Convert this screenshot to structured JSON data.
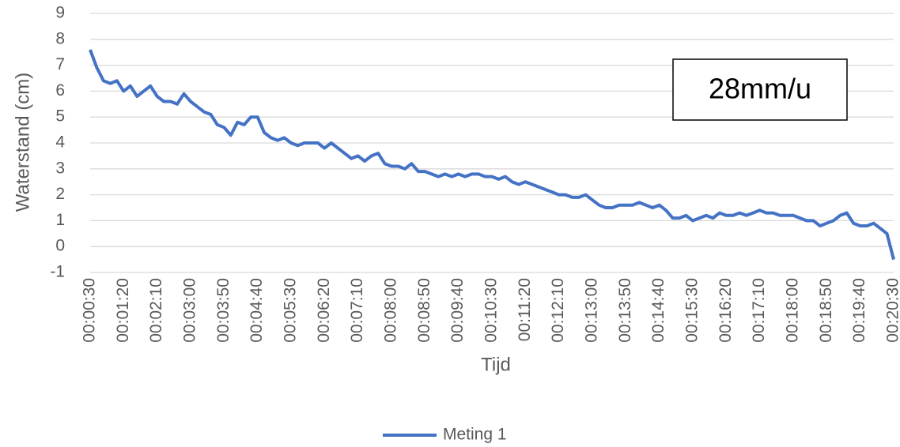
{
  "chart_data": {
    "type": "line",
    "x_label": "Tijd",
    "y_label": "Waterstand (cm)",
    "annotation": "28mm/u",
    "categories": [
      "00:00:30",
      null,
      null,
      null,
      null,
      "00:01:20",
      null,
      null,
      null,
      null,
      "00:02:10",
      null,
      null,
      null,
      null,
      "00:03:00",
      null,
      null,
      null,
      null,
      "00:03:50",
      null,
      null,
      null,
      null,
      "00:04:40",
      null,
      null,
      null,
      null,
      "00:05:30",
      null,
      null,
      null,
      null,
      "00:06:20",
      null,
      null,
      null,
      null,
      "00:07:10",
      null,
      null,
      null,
      null,
      "00:08:00",
      null,
      null,
      null,
      null,
      "00:08:50",
      null,
      null,
      null,
      null,
      "00:09:40",
      null,
      null,
      null,
      null,
      "00:10:30",
      null,
      null,
      null,
      null,
      "00:11:20",
      null,
      null,
      null,
      null,
      "00:12:10",
      null,
      null,
      null,
      null,
      "00:13:00",
      null,
      null,
      null,
      null,
      "00:13:50",
      null,
      null,
      null,
      null,
      "00:14:40",
      null,
      null,
      null,
      null,
      "00:15:30",
      null,
      null,
      null,
      null,
      "00:16:20",
      null,
      null,
      null,
      null,
      "00:17:10",
      null,
      null,
      null,
      null,
      "00:18:00",
      null,
      null,
      null,
      null,
      "00:18:50",
      null,
      null,
      null,
      null,
      "00:19:40",
      null,
      null,
      null,
      null,
      "00:20:30"
    ],
    "series": [
      {
        "name": "Meting 1",
        "color": "#4472c4",
        "values": [
          7.6,
          6.9,
          6.4,
          6.3,
          6.4,
          6.0,
          6.2,
          5.8,
          6.0,
          6.2,
          5.8,
          5.6,
          5.6,
          5.5,
          5.9,
          5.6,
          5.4,
          5.2,
          5.1,
          4.7,
          4.6,
          4.3,
          4.8,
          4.7,
          5.0,
          5.0,
          4.4,
          4.2,
          4.1,
          4.2,
          4.0,
          3.9,
          4.0,
          4.0,
          4.0,
          3.8,
          4.0,
          3.8,
          3.6,
          3.4,
          3.5,
          3.3,
          3.5,
          3.6,
          3.2,
          3.1,
          3.1,
          3.0,
          3.2,
          2.9,
          2.9,
          2.8,
          2.7,
          2.8,
          2.7,
          2.8,
          2.7,
          2.8,
          2.8,
          2.7,
          2.7,
          2.6,
          2.7,
          2.5,
          2.4,
          2.5,
          2.4,
          2.3,
          2.2,
          2.1,
          2.0,
          2.0,
          1.9,
          1.9,
          2.0,
          1.8,
          1.6,
          1.5,
          1.5,
          1.6,
          1.6,
          1.6,
          1.7,
          1.6,
          1.5,
          1.6,
          1.4,
          1.1,
          1.1,
          1.2,
          1.0,
          1.1,
          1.2,
          1.1,
          1.3,
          1.2,
          1.2,
          1.3,
          1.2,
          1.3,
          1.4,
          1.3,
          1.3,
          1.2,
          1.2,
          1.2,
          1.1,
          1.0,
          1.0,
          0.8,
          0.9,
          1.0,
          1.2,
          1.3,
          0.9,
          0.8,
          0.8,
          0.9,
          0.7,
          0.5,
          -0.5
        ]
      }
    ],
    "ylim": [
      -1,
      9
    ],
    "yticks": [
      -1,
      0,
      1,
      2,
      3,
      4,
      5,
      6,
      7,
      8,
      9
    ],
    "grid": true
  }
}
